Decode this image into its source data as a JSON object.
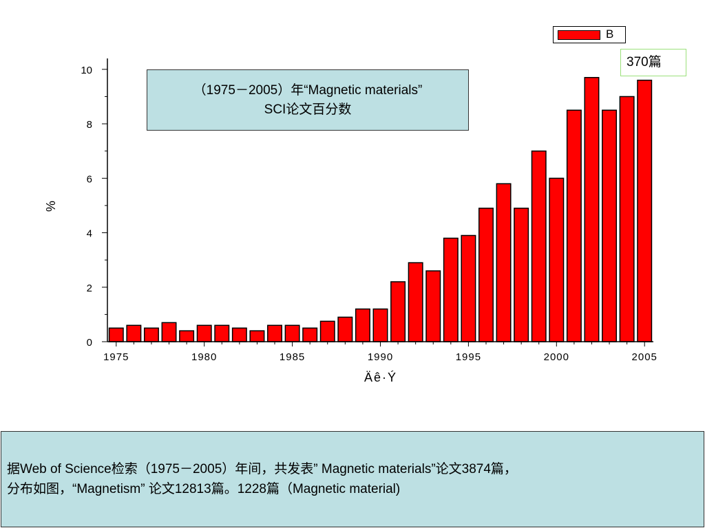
{
  "title_box": {
    "line1": "（1975－2005）年“Magnetic materials”",
    "line2": "SCI论文百分数"
  },
  "count_label": "370篇",
  "note": {
    "line1": "据Web of Science检索（1975－2005）年间，共发表” Magnetic materials”论文3874篇，",
    "line2": "分布如图，“Magnetism” 论文12813篇。1228篇（Magnetic material)"
  },
  "colors": {
    "bar": "#ff0000",
    "panel": "#bde0e3"
  },
  "chart_data": {
    "type": "bar",
    "xlabel": "Äê·Ý",
    "ylabel": "%",
    "ylim": [
      0,
      10.4
    ],
    "xlim": [
      1974.5,
      2005.5
    ],
    "yticks": [
      0,
      2,
      4,
      6,
      8,
      10
    ],
    "xticks": [
      1975,
      1980,
      1985,
      1990,
      1995,
      2000,
      2005
    ],
    "legend": {
      "label": "B",
      "position": "top-right"
    },
    "series": [
      {
        "name": "B",
        "x": [
          1975,
          1976,
          1977,
          1978,
          1979,
          1980,
          1981,
          1982,
          1983,
          1984,
          1985,
          1986,
          1987,
          1988,
          1989,
          1990,
          1991,
          1992,
          1993,
          1994,
          1995,
          1996,
          1997,
          1998,
          1999,
          2000,
          2001,
          2002,
          2003,
          2004,
          2005
        ],
        "values": [
          0.5,
          0.6,
          0.5,
          0.7,
          0.4,
          0.6,
          0.6,
          0.5,
          0.4,
          0.6,
          0.6,
          0.5,
          0.75,
          0.9,
          1.2,
          1.2,
          2.2,
          2.9,
          2.6,
          3.8,
          3.9,
          4.9,
          5.8,
          4.9,
          7.0,
          6.0,
          8.5,
          9.7,
          8.5,
          9.0,
          9.6
        ]
      }
    ]
  }
}
